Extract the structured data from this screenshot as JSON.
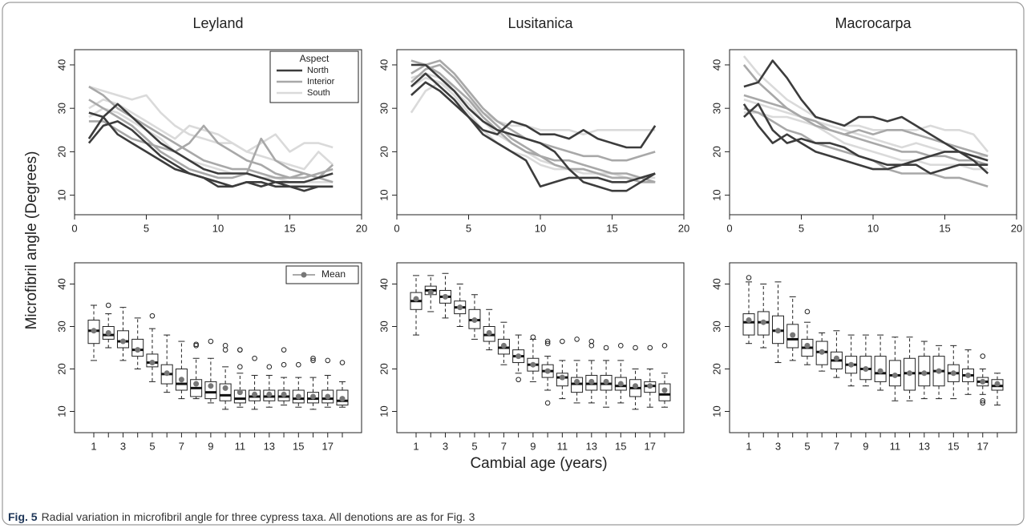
{
  "ylabel": "Microfibril angle  (Degrees)",
  "xlabel": "Cambial age (years)",
  "caption_label": "Fig. 5",
  "caption": "Radial variation in microfibril angle for three cypress taxa. All denotions are as for Fig. 3",
  "chart_data": [
    {
      "type": "line",
      "title": "Leyland",
      "x": [
        1,
        2,
        3,
        4,
        5,
        6,
        7,
        8,
        9,
        10,
        11,
        12,
        13,
        14,
        15,
        16,
        17,
        18
      ],
      "xlim": [
        0,
        20
      ],
      "xticks": [
        0,
        5,
        10,
        15,
        20
      ],
      "ylim": [
        5.5,
        43.5
      ],
      "yticks": [
        10,
        20,
        30,
        40
      ],
      "legend": {
        "title": "Aspect",
        "entries": [
          {
            "name": "North",
            "color": "#3c3c3c"
          },
          {
            "name": "Interior",
            "color": "#a8a8a8"
          },
          {
            "name": "South",
            "color": "#dadada"
          }
        ]
      },
      "series": [
        {
          "color": "#dadada",
          "values": [
            35,
            34,
            33,
            32,
            33,
            29,
            26,
            24,
            23,
            22,
            22,
            20,
            19,
            18,
            17,
            16,
            20,
            17
          ]
        },
        {
          "color": "#dadada",
          "values": [
            30,
            32,
            31,
            29,
            27,
            25,
            23,
            26,
            25,
            24,
            22,
            20,
            22,
            24,
            20,
            22,
            22,
            21
          ]
        },
        {
          "color": "#dadada",
          "values": [
            28,
            30,
            29,
            27,
            25,
            23,
            20,
            18,
            17,
            16,
            15,
            15,
            14,
            14,
            13,
            13,
            13,
            13
          ]
        },
        {
          "color": "#a8a8a8",
          "values": [
            35,
            33,
            30,
            28,
            26,
            24,
            22,
            20,
            18,
            17,
            16,
            16,
            15,
            14,
            14,
            14,
            15,
            16
          ]
        },
        {
          "color": "#a8a8a8",
          "values": [
            32,
            30,
            28,
            26,
            23,
            20,
            18,
            16,
            15,
            14,
            14,
            15,
            23,
            18,
            16,
            15,
            14,
            13
          ]
        },
        {
          "color": "#a8a8a8",
          "values": [
            27,
            27,
            25,
            23,
            22,
            21,
            20,
            22,
            26,
            22,
            20,
            18,
            17,
            15,
            14,
            15,
            14,
            17
          ]
        },
        {
          "color": "#3c3c3c",
          "values": [
            29,
            28,
            31,
            28,
            25,
            22,
            20,
            18,
            16,
            15,
            15,
            15,
            14,
            13,
            13,
            13,
            14,
            15
          ]
        },
        {
          "color": "#3c3c3c",
          "values": [
            22,
            26,
            27,
            25,
            22,
            19,
            17,
            15,
            14,
            13,
            12,
            13,
            13,
            12,
            12,
            11,
            12,
            12
          ]
        },
        {
          "color": "#3c3c3c",
          "values": [
            23,
            28,
            24,
            22,
            20,
            18,
            16,
            15,
            14,
            12,
            12,
            13,
            12,
            13,
            12,
            12,
            12,
            12
          ]
        }
      ]
    },
    {
      "type": "line",
      "title": "Lusitanica",
      "x": [
        1,
        2,
        3,
        4,
        5,
        6,
        7,
        8,
        9,
        10,
        11,
        12,
        13,
        14,
        15,
        16,
        17,
        18
      ],
      "xlim": [
        0,
        20
      ],
      "xticks": [
        0,
        5,
        10,
        15,
        20
      ],
      "ylim": [
        5.5,
        43.5
      ],
      "yticks": [
        10,
        20,
        30,
        40
      ],
      "series": [
        {
          "color": "#dadada",
          "values": [
            37,
            38,
            37,
            35,
            32,
            29,
            27,
            26,
            26,
            25,
            25,
            25,
            24,
            25,
            25,
            25,
            25,
            25
          ]
        },
        {
          "color": "#dadada",
          "values": [
            29,
            34,
            36,
            34,
            31,
            27,
            24,
            22,
            20,
            18,
            17,
            16,
            16,
            15,
            15,
            14,
            14,
            14
          ]
        },
        {
          "color": "#dadada",
          "values": [
            35,
            37,
            36,
            33,
            29,
            25,
            22,
            20,
            19,
            17,
            16,
            16,
            15,
            15,
            14,
            14,
            13,
            13
          ]
        },
        {
          "color": "#a8a8a8",
          "values": [
            38,
            40,
            41,
            38,
            34,
            30,
            27,
            25,
            23,
            22,
            21,
            20,
            19,
            19,
            18,
            18,
            19,
            20
          ]
        },
        {
          "color": "#a8a8a8",
          "values": [
            36,
            39,
            40,
            37,
            33,
            29,
            26,
            23,
            21,
            19,
            18,
            18,
            17,
            16,
            15,
            15,
            14,
            13
          ]
        },
        {
          "color": "#a8a8a8",
          "values": [
            41,
            40,
            38,
            35,
            32,
            28,
            25,
            22,
            20,
            19,
            17,
            16,
            16,
            15,
            14,
            14,
            13,
            13
          ]
        },
        {
          "color": "#3c3c3c",
          "values": [
            40,
            40,
            37,
            34,
            30,
            27,
            25,
            24,
            23,
            22,
            20,
            16,
            13,
            12,
            11,
            11,
            13,
            15
          ]
        },
        {
          "color": "#3c3c3c",
          "values": [
            35,
            38,
            35,
            32,
            28,
            25,
            24,
            27,
            26,
            24,
            24,
            23,
            25,
            23,
            22,
            21,
            21,
            26
          ]
        },
        {
          "color": "#3c3c3c",
          "values": [
            33,
            36,
            34,
            31,
            28,
            24,
            22,
            20,
            18,
            12,
            13,
            14,
            14,
            14,
            13,
            13,
            14,
            15
          ]
        }
      ]
    },
    {
      "type": "line",
      "title": "Macrocarpa",
      "x": [
        1,
        2,
        3,
        4,
        5,
        6,
        7,
        8,
        9,
        10,
        11,
        12,
        13,
        14,
        15,
        16,
        17,
        18
      ],
      "xlim": [
        0,
        20
      ],
      "xticks": [
        0,
        5,
        10,
        15,
        20
      ],
      "ylim": [
        5.5,
        43.5
      ],
      "yticks": [
        10,
        20,
        30,
        40
      ],
      "series": [
        {
          "color": "#dadada",
          "values": [
            42,
            38,
            35,
            32,
            30,
            28,
            27,
            26,
            26,
            25,
            25,
            25,
            25,
            26,
            25,
            25,
            24,
            20
          ]
        },
        {
          "color": "#dadada",
          "values": [
            32,
            31,
            30,
            29,
            28,
            27,
            26,
            25,
            24,
            23,
            22,
            21,
            22,
            21,
            20,
            20,
            19,
            19
          ]
        },
        {
          "color": "#dadada",
          "values": [
            29,
            29,
            28,
            28,
            27,
            26,
            24,
            22,
            21,
            20,
            19,
            18,
            18,
            17,
            17,
            17,
            16,
            16
          ]
        },
        {
          "color": "#a8a8a8",
          "values": [
            40,
            36,
            33,
            30,
            28,
            26,
            25,
            24,
            23,
            22,
            21,
            20,
            20,
            19,
            19,
            18,
            18,
            17
          ]
        },
        {
          "color": "#a8a8a8",
          "values": [
            33,
            32,
            31,
            30,
            28,
            27,
            25,
            24,
            25,
            24,
            25,
            25,
            24,
            23,
            22,
            21,
            20,
            19
          ]
        },
        {
          "color": "#a8a8a8",
          "values": [
            30,
            29,
            27,
            25,
            24,
            22,
            21,
            20,
            19,
            18,
            16,
            15,
            15,
            15,
            14,
            14,
            13,
            12
          ]
        },
        {
          "color": "#3c3c3c",
          "values": [
            35,
            36,
            41,
            37,
            32,
            28,
            27,
            26,
            28,
            28,
            27,
            28,
            26,
            24,
            22,
            20,
            18,
            15
          ]
        },
        {
          "color": "#3c3c3c",
          "values": [
            28,
            31,
            25,
            22,
            23,
            22,
            22,
            21,
            19,
            18,
            17,
            17,
            18,
            19,
            20,
            20,
            19,
            18
          ]
        },
        {
          "color": "#3c3c3c",
          "values": [
            31,
            26,
            22,
            24,
            22,
            20,
            19,
            18,
            17,
            16,
            16,
            17,
            17,
            15,
            16,
            17,
            17,
            17
          ]
        }
      ]
    },
    {
      "type": "box",
      "categories": [
        1,
        null,
        3,
        null,
        5,
        null,
        7,
        null,
        9,
        null,
        11,
        null,
        13,
        null,
        15,
        null,
        17,
        null
      ],
      "ylim": [
        5,
        45
      ],
      "yticks": [
        10,
        20,
        30,
        40
      ],
      "legend": {
        "entries": [
          {
            "name": "Mean",
            "color": "#777777"
          }
        ]
      },
      "mean_color": "#777777",
      "min": [
        22,
        25,
        22,
        20,
        17,
        14.5,
        13,
        13,
        12,
        10.5,
        11,
        10.5,
        11,
        11.5,
        11,
        10.5,
        11,
        11
      ],
      "q1": [
        26,
        27,
        25,
        23,
        20.5,
        16.5,
        15,
        13.5,
        13,
        12.5,
        12,
        12.5,
        12.5,
        12.5,
        12,
        12,
        12,
        11.5
      ],
      "median": [
        29,
        28,
        26.5,
        24.5,
        21.5,
        18.8,
        16.5,
        15.5,
        14.5,
        13.8,
        13,
        13.5,
        13.5,
        13.5,
        13,
        13,
        13,
        12.5
      ],
      "q3": [
        31.5,
        30,
        29,
        27,
        23.5,
        21,
        20,
        17.5,
        17,
        16.5,
        15,
        15,
        15,
        15,
        15,
        14.5,
        15,
        15
      ],
      "max": [
        35,
        33,
        34.5,
        32,
        29.5,
        28,
        26.5,
        22.5,
        22.5,
        20.5,
        19,
        18.5,
        18.5,
        18,
        18,
        18,
        18.5,
        17
      ],
      "mean": [
        29,
        28.5,
        26.5,
        24.5,
        21.5,
        19,
        17.5,
        16.5,
        16,
        15.5,
        14.5,
        14,
        14,
        14,
        13.5,
        13.5,
        13.5,
        13
      ],
      "outliers": [
        [],
        [
          35
        ],
        [],
        [],
        [
          32.5
        ],
        [],
        [],
        [
          25.5,
          25.8
        ],
        [
          26.5
        ],
        [
          25.5,
          24.5
        ],
        [
          24.5,
          24.5,
          20.5
        ],
        [
          22.5
        ],
        [
          20.5
        ],
        [
          24.5,
          21
        ],
        [
          21
        ],
        [
          22.5,
          22
        ],
        [
          22
        ],
        [
          21.5
        ]
      ]
    },
    {
      "type": "box",
      "categories": [
        1,
        null,
        3,
        null,
        5,
        null,
        7,
        null,
        9,
        null,
        11,
        null,
        13,
        null,
        15,
        null,
        17,
        null
      ],
      "ylim": [
        5,
        45
      ],
      "yticks": [
        10,
        20,
        30,
        40
      ],
      "mean_color": "#777777",
      "min": [
        28,
        33.5,
        32,
        30,
        27,
        24.5,
        21,
        19,
        17,
        15,
        13,
        12,
        12,
        11,
        12,
        10.5,
        11,
        11
      ],
      "q1": [
        34,
        37.5,
        35.5,
        33,
        29.5,
        26.5,
        23.5,
        21.5,
        19.5,
        18,
        16,
        14.5,
        15,
        15,
        15,
        13.5,
        14.5,
        12.5
      ],
      "median": [
        36,
        38.5,
        37,
        34.5,
        31.5,
        28,
        25,
        23,
        21,
        19.5,
        18,
        16.5,
        16.5,
        16.5,
        16,
        15.5,
        16,
        14
      ],
      "q3": [
        38,
        39.5,
        38.5,
        36,
        34,
        30,
        27,
        24.5,
        22.5,
        21,
        19,
        18,
        18.5,
        18.5,
        18,
        17.5,
        17,
        16.5
      ],
      "max": [
        42,
        42,
        42.5,
        40,
        37.5,
        34,
        31,
        28,
        27,
        23,
        22,
        22,
        22,
        22,
        22,
        20,
        20,
        19
      ],
      "mean": [
        36.5,
        38,
        37,
        34.5,
        31.5,
        28.5,
        25.5,
        23,
        21,
        19.5,
        18,
        17,
        17,
        17,
        16.5,
        16,
        16,
        15
      ],
      "outliers": [
        [],
        [],
        [],
        [],
        [],
        [],
        [],
        [
          17.5
        ],
        [
          27.5
        ],
        [
          26.5,
          26,
          12
        ],
        [
          26.5
        ],
        [
          27
        ],
        [
          26.5,
          25.5
        ],
        [
          25
        ],
        [
          25.5
        ],
        [
          25
        ],
        [
          25
        ],
        [
          25.5
        ]
      ]
    },
    {
      "type": "box",
      "categories": [
        1,
        null,
        3,
        null,
        5,
        null,
        7,
        null,
        9,
        null,
        11,
        null,
        13,
        null,
        15,
        null,
        17,
        null
      ],
      "ylim": [
        5,
        45
      ],
      "yticks": [
        10,
        20,
        30,
        40
      ],
      "mean_color": "#777777",
      "min": [
        26,
        25,
        21.5,
        22,
        21,
        19.5,
        18,
        16,
        16,
        15,
        12.5,
        12.5,
        13,
        13,
        13,
        14,
        14,
        11.5
      ],
      "q1": [
        28,
        28,
        26,
        25,
        23,
        21,
        20,
        19,
        17.5,
        17,
        16,
        15,
        16,
        16,
        17,
        17,
        16,
        15
      ],
      "median": [
        31,
        31,
        29,
        27,
        25,
        24,
        22,
        21,
        20,
        19,
        18.5,
        19,
        19,
        19.5,
        19,
        18.5,
        17,
        16
      ],
      "q3": [
        33,
        33.5,
        32.5,
        30.5,
        27,
        26.5,
        24,
        23,
        23,
        23,
        22,
        22.5,
        23,
        23,
        21,
        20,
        18,
        17.5
      ],
      "max": [
        40.5,
        40,
        40.5,
        37,
        31,
        28.5,
        29,
        28,
        28,
        28,
        27.5,
        27.5,
        26.5,
        25.5,
        25.5,
        24.5,
        20,
        19
      ],
      "mean": [
        31.5,
        31,
        29,
        28,
        25.5,
        24,
        22.5,
        21,
        20,
        19.5,
        18.5,
        19,
        19,
        19.5,
        19,
        18.5,
        17,
        16.5
      ],
      "outliers": [
        [
          41.5
        ],
        [],
        [],
        [],
        [
          33.5
        ],
        [],
        [],
        [],
        [],
        [],
        [],
        [],
        [],
        [],
        [],
        [],
        [
          23,
          12.5,
          12
        ],
        []
      ]
    }
  ]
}
